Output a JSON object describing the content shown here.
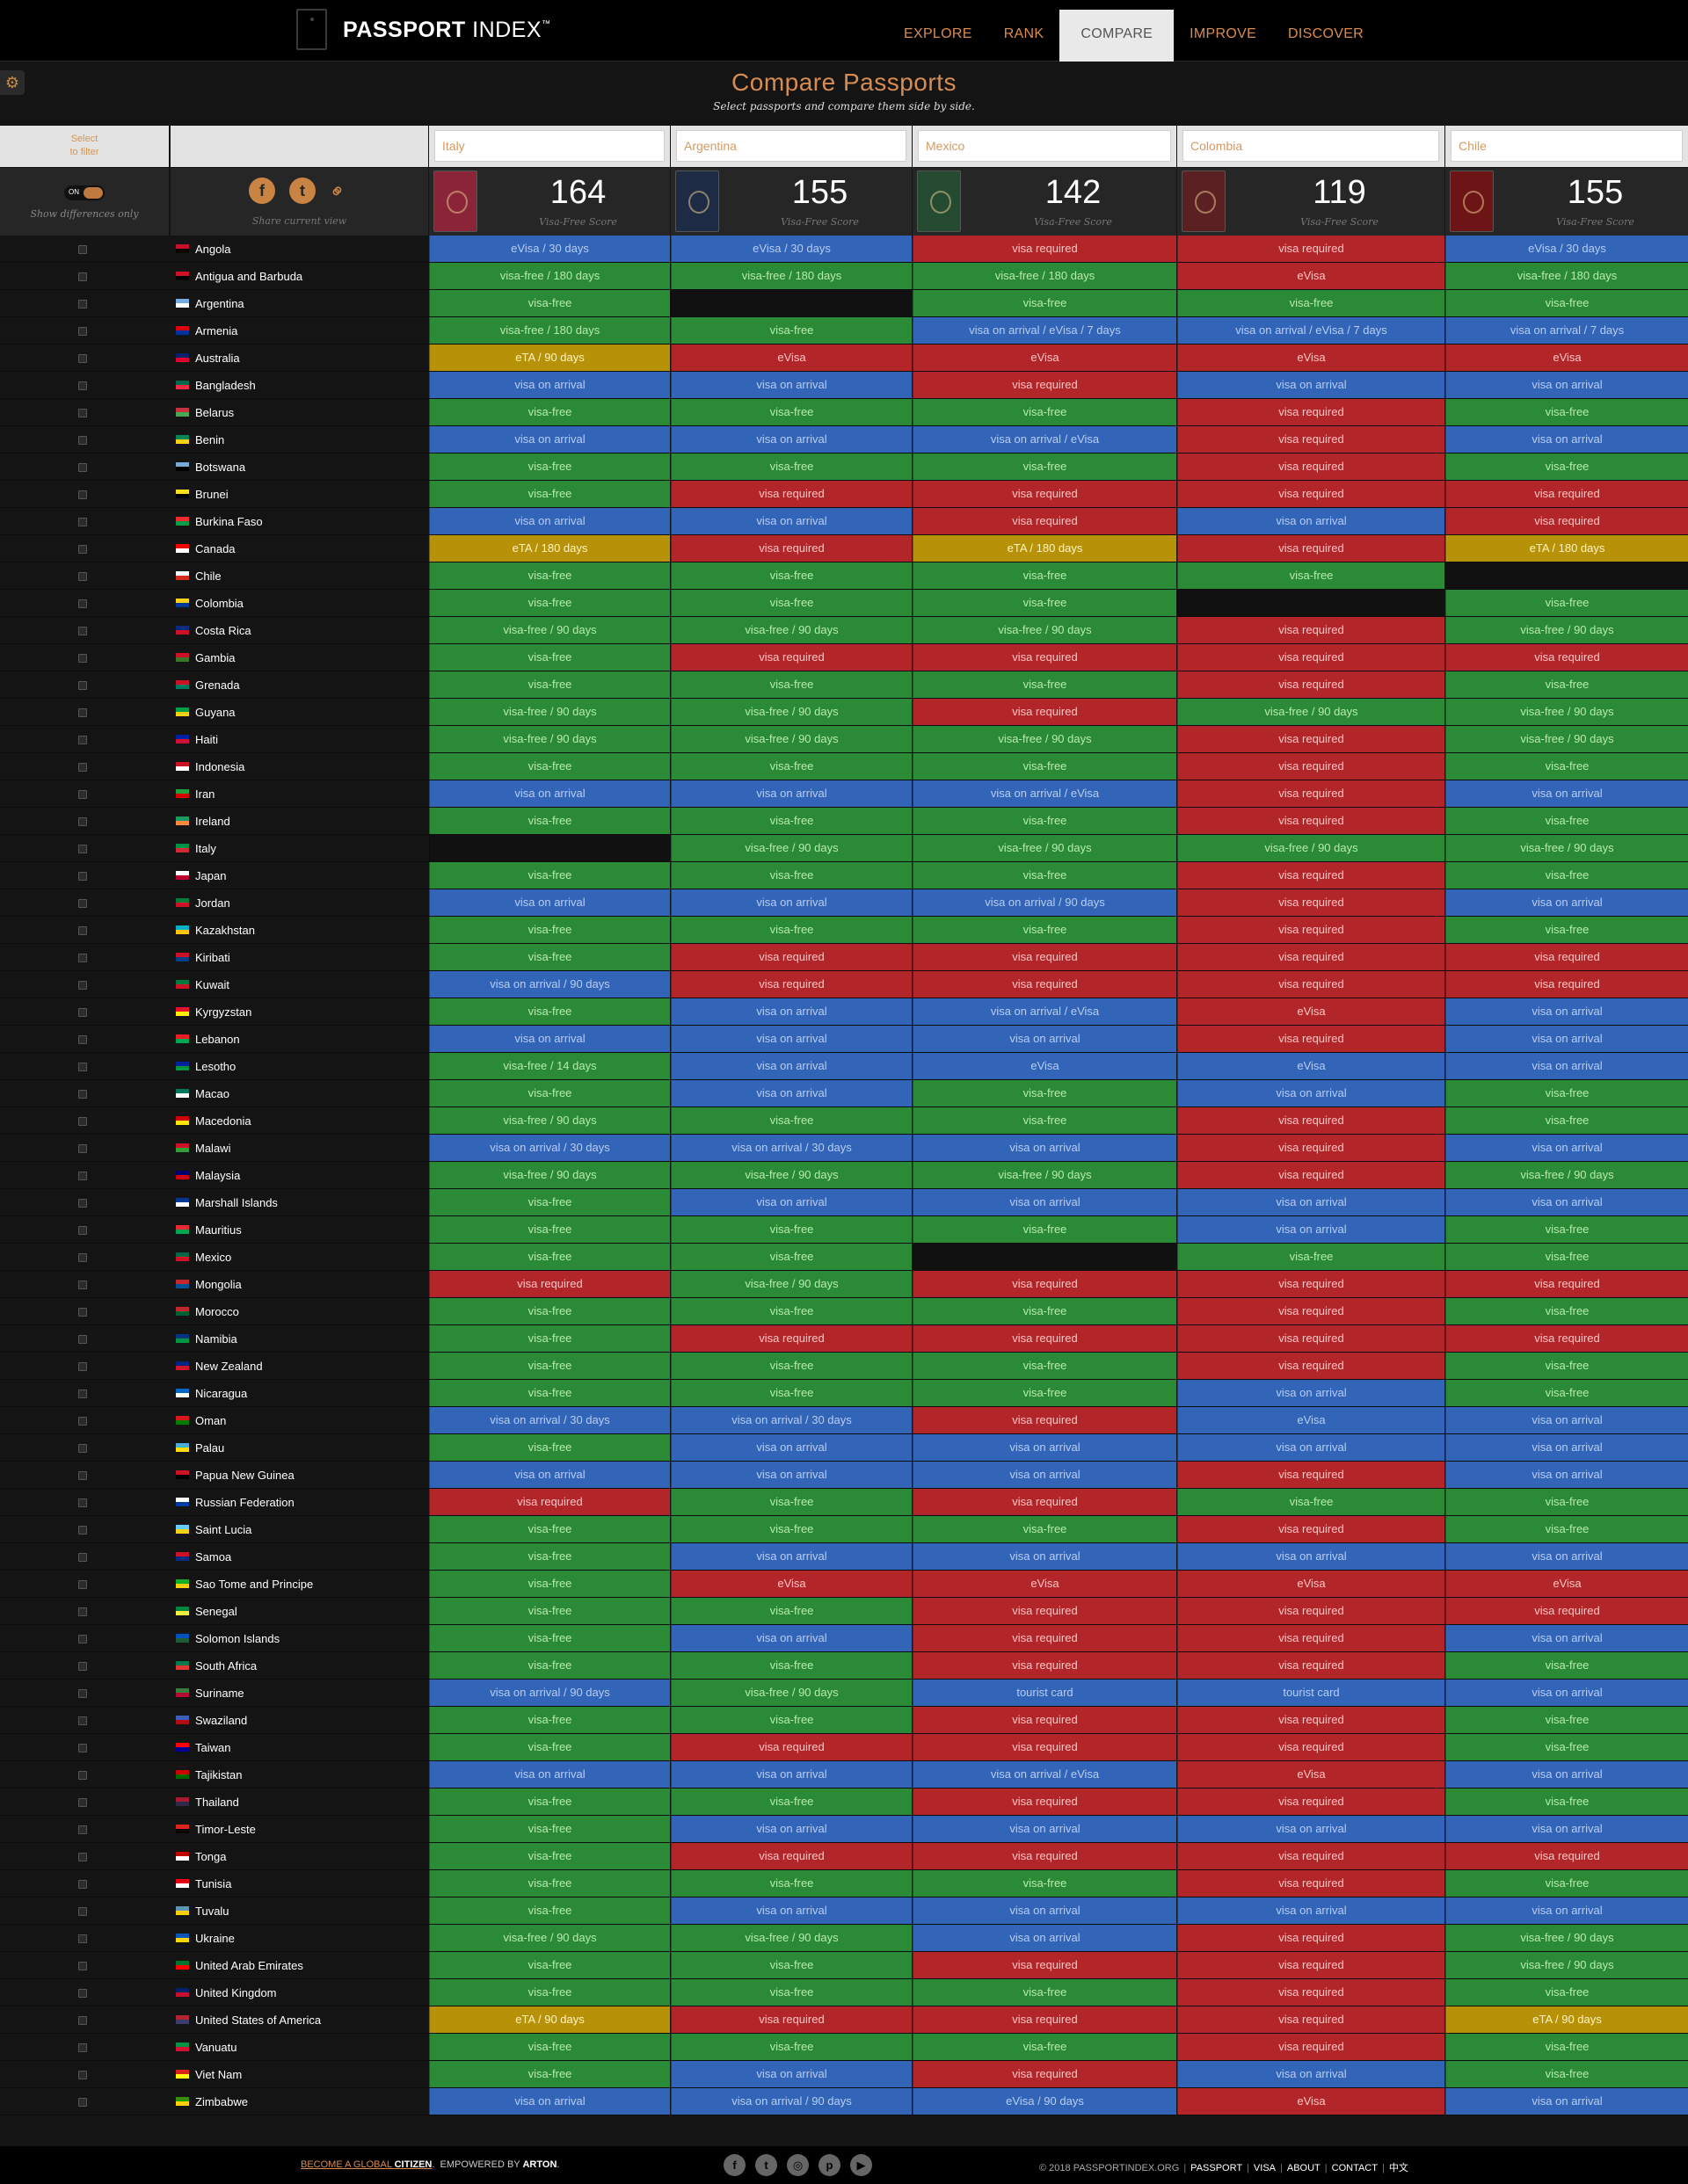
{
  "header": {
    "logo_main": "PASSPORT",
    "logo_sub": "INDEX",
    "logo_tm": "™",
    "nav": [
      "EXPLORE",
      "RANK",
      "COMPARE",
      "IMPROVE",
      "DISCOVER"
    ],
    "active_nav": "COMPARE"
  },
  "page": {
    "title": "Compare Passports",
    "subtitle": "Select passports and compare them side by side.",
    "settings_icon": "gear-icon"
  },
  "controls": {
    "filter_line1": "Select",
    "filter_line2": "to filter",
    "toggle_label": "ON",
    "show_differences_label": "Show differences only",
    "share_label": "Share current view",
    "share_icons": [
      "facebook-icon",
      "twitter-icon",
      "link-icon"
    ]
  },
  "passports": [
    {
      "name": "Italy",
      "score": "164",
      "score_label": "Visa-Free Score",
      "cover_color": "#8a2438"
    },
    {
      "name": "Argentina",
      "score": "155",
      "score_label": "Visa-Free Score",
      "cover_color": "#1d2b45"
    },
    {
      "name": "Mexico",
      "score": "142",
      "score_label": "Visa-Free Score",
      "cover_color": "#244a32"
    },
    {
      "name": "Colombia",
      "score": "119",
      "score_label": "Visa-Free Score",
      "cover_color": "#5a2022"
    },
    {
      "name": "Chile",
      "score": "155",
      "score_label": "Visa-Free Score",
      "cover_color": "#6d1516"
    }
  ],
  "status_colors": {
    "visa required": "#b2262a",
    "visa-free": "#2a8a35",
    "visa on arrival": "#3264b8",
    "eta": "#b79209"
  },
  "countries": [
    {
      "name": "Angola",
      "flag": [
        "#c8102e",
        "#000000"
      ],
      "values": [
        "eVisa / 30 days",
        "eVisa / 30 days",
        "visa required",
        "visa required",
        "eVisa / 30 days"
      ]
    },
    {
      "name": "Antigua and Barbuda",
      "flag": [
        "#ce1126",
        "#000000"
      ],
      "values": [
        "visa-free / 180 days",
        "visa-free / 180 days",
        "visa-free / 180 days",
        "eVisa",
        "visa-free / 180 days"
      ]
    },
    {
      "name": "Argentina",
      "flag": [
        "#74acdf",
        "#ffffff"
      ],
      "values": [
        "visa-free",
        "",
        "visa-free",
        "visa-free",
        "visa-free"
      ]
    },
    {
      "name": "Armenia",
      "flag": [
        "#d90012",
        "#0033a0"
      ],
      "values": [
        "visa-free / 180 days",
        "visa-free",
        "visa on arrival / eVisa / 7 days",
        "visa on arrival / eVisa / 7 days",
        "visa on arrival / 7 days"
      ]
    },
    {
      "name": "Australia",
      "flag": [
        "#012169",
        "#e4002b"
      ],
      "values": [
        "eTA / 90 days",
        "eVisa",
        "eVisa",
        "eVisa",
        "eVisa"
      ]
    },
    {
      "name": "Bangladesh",
      "flag": [
        "#006a4e",
        "#f42a41"
      ],
      "values": [
        "visa on arrival",
        "visa on arrival",
        "visa required",
        "visa on arrival",
        "visa on arrival"
      ]
    },
    {
      "name": "Belarus",
      "flag": [
        "#c8313e",
        "#4aa657"
      ],
      "values": [
        "visa-free",
        "visa-free",
        "visa-free",
        "visa required",
        "visa-free"
      ]
    },
    {
      "name": "Benin",
      "flag": [
        "#008751",
        "#fcd116"
      ],
      "values": [
        "visa on arrival",
        "visa on arrival",
        "visa on arrival / eVisa",
        "visa required",
        "visa on arrival"
      ]
    },
    {
      "name": "Botswana",
      "flag": [
        "#75aadb",
        "#000000"
      ],
      "values": [
        "visa-free",
        "visa-free",
        "visa-free",
        "visa required",
        "visa-free"
      ]
    },
    {
      "name": "Brunei",
      "flag": [
        "#f7e017",
        "#000000"
      ],
      "values": [
        "visa-free",
        "visa required",
        "visa required",
        "visa required",
        "visa required"
      ]
    },
    {
      "name": "Burkina Faso",
      "flag": [
        "#ef2b2d",
        "#009e49"
      ],
      "values": [
        "visa on arrival",
        "visa on arrival",
        "visa required",
        "visa on arrival",
        "visa required"
      ]
    },
    {
      "name": "Canada",
      "flag": [
        "#ff0000",
        "#ffffff"
      ],
      "values": [
        "eTA / 180 days",
        "visa required",
        "eTA / 180 days",
        "visa required",
        "eTA / 180 days"
      ]
    },
    {
      "name": "Chile",
      "flag": [
        "#ffffff",
        "#d52b1e"
      ],
      "values": [
        "visa-free",
        "visa-free",
        "visa-free",
        "visa-free",
        ""
      ]
    },
    {
      "name": "Colombia",
      "flag": [
        "#fcd116",
        "#003893"
      ],
      "values": [
        "visa-free",
        "visa-free",
        "visa-free",
        "",
        "visa-free"
      ]
    },
    {
      "name": "Costa Rica",
      "flag": [
        "#002b7f",
        "#ce1126"
      ],
      "values": [
        "visa-free / 90 days",
        "visa-free / 90 days",
        "visa-free / 90 days",
        "visa required",
        "visa-free / 90 days"
      ]
    },
    {
      "name": "Gambia",
      "flag": [
        "#ce1126",
        "#3a7728"
      ],
      "values": [
        "visa-free",
        "visa required",
        "visa required",
        "visa required",
        "visa required"
      ]
    },
    {
      "name": "Grenada",
      "flag": [
        "#ce1126",
        "#007a5e"
      ],
      "values": [
        "visa-free",
        "visa-free",
        "visa-free",
        "visa required",
        "visa-free"
      ]
    },
    {
      "name": "Guyana",
      "flag": [
        "#009e49",
        "#fcd116"
      ],
      "values": [
        "visa-free / 90 days",
        "visa-free / 90 days",
        "visa required",
        "visa-free / 90 days",
        "visa-free / 90 days"
      ]
    },
    {
      "name": "Haiti",
      "flag": [
        "#00209f",
        "#d21034"
      ],
      "values": [
        "visa-free / 90 days",
        "visa-free / 90 days",
        "visa-free / 90 days",
        "visa required",
        "visa-free / 90 days"
      ]
    },
    {
      "name": "Indonesia",
      "flag": [
        "#ce1126",
        "#ffffff"
      ],
      "values": [
        "visa-free",
        "visa-free",
        "visa-free",
        "visa required",
        "visa-free"
      ]
    },
    {
      "name": "Iran",
      "flag": [
        "#239f40",
        "#da0000"
      ],
      "values": [
        "visa on arrival",
        "visa on arrival",
        "visa on arrival / eVisa",
        "visa required",
        "visa on arrival"
      ]
    },
    {
      "name": "Ireland",
      "flag": [
        "#169b62",
        "#ff883e"
      ],
      "values": [
        "visa-free",
        "visa-free",
        "visa-free",
        "visa required",
        "visa-free"
      ]
    },
    {
      "name": "Italy",
      "flag": [
        "#009246",
        "#ce2b37"
      ],
      "values": [
        "",
        "visa-free / 90 days",
        "visa-free / 90 days",
        "visa-free / 90 days",
        "visa-free / 90 days"
      ]
    },
    {
      "name": "Japan",
      "flag": [
        "#ffffff",
        "#bc002d"
      ],
      "values": [
        "visa-free",
        "visa-free",
        "visa-free",
        "visa required",
        "visa-free"
      ]
    },
    {
      "name": "Jordan",
      "flag": [
        "#007a3d",
        "#ce1126"
      ],
      "values": [
        "visa on arrival",
        "visa on arrival",
        "visa on arrival / 90 days",
        "visa required",
        "visa on arrival"
      ]
    },
    {
      "name": "Kazakhstan",
      "flag": [
        "#00afca",
        "#fec50c"
      ],
      "values": [
        "visa-free",
        "visa-free",
        "visa-free",
        "visa required",
        "visa-free"
      ]
    },
    {
      "name": "Kiribati",
      "flag": [
        "#ce1126",
        "#003f87"
      ],
      "values": [
        "visa-free",
        "visa required",
        "visa required",
        "visa required",
        "visa required"
      ]
    },
    {
      "name": "Kuwait",
      "flag": [
        "#007a3d",
        "#ce1126"
      ],
      "values": [
        "visa on arrival / 90 days",
        "visa required",
        "visa required",
        "visa required",
        "visa required"
      ]
    },
    {
      "name": "Kyrgyzstan",
      "flag": [
        "#e8112d",
        "#ffef00"
      ],
      "values": [
        "visa-free",
        "visa on arrival",
        "visa on arrival / eVisa",
        "eVisa",
        "visa on arrival"
      ]
    },
    {
      "name": "Lebanon",
      "flag": [
        "#ed1c24",
        "#00a651"
      ],
      "values": [
        "visa on arrival",
        "visa on arrival",
        "visa on arrival",
        "visa required",
        "visa on arrival"
      ]
    },
    {
      "name": "Lesotho",
      "flag": [
        "#00209f",
        "#009543"
      ],
      "values": [
        "visa-free / 14 days",
        "visa on arrival",
        "eVisa",
        "eVisa",
        "visa on arrival"
      ]
    },
    {
      "name": "Macao",
      "flag": [
        "#00785e",
        "#ffffff"
      ],
      "values": [
        "visa-free",
        "visa on arrival",
        "visa-free",
        "visa on arrival",
        "visa-free"
      ]
    },
    {
      "name": "Macedonia",
      "flag": [
        "#d20000",
        "#ffe600"
      ],
      "values": [
        "visa-free / 90 days",
        "visa-free",
        "visa-free",
        "visa required",
        "visa-free"
      ]
    },
    {
      "name": "Malawi",
      "flag": [
        "#ce1126",
        "#339e35"
      ],
      "values": [
        "visa on arrival / 30 days",
        "visa on arrival / 30 days",
        "visa on arrival",
        "visa required",
        "visa on arrival"
      ]
    },
    {
      "name": "Malaysia",
      "flag": [
        "#010066",
        "#cc0001"
      ],
      "values": [
        "visa-free / 90 days",
        "visa-free / 90 days",
        "visa-free / 90 days",
        "visa required",
        "visa-free / 90 days"
      ]
    },
    {
      "name": "Marshall Islands",
      "flag": [
        "#003893",
        "#ffffff"
      ],
      "values": [
        "visa-free",
        "visa on arrival",
        "visa on arrival",
        "visa on arrival",
        "visa on arrival"
      ]
    },
    {
      "name": "Mauritius",
      "flag": [
        "#ea2839",
        "#00a551"
      ],
      "values": [
        "visa-free",
        "visa-free",
        "visa-free",
        "visa on arrival",
        "visa-free"
      ]
    },
    {
      "name": "Mexico",
      "flag": [
        "#006847",
        "#ce1126"
      ],
      "values": [
        "visa-free",
        "visa-free",
        "",
        "visa-free",
        "visa-free"
      ]
    },
    {
      "name": "Mongolia",
      "flag": [
        "#c4272f",
        "#015197"
      ],
      "values": [
        "visa required",
        "visa-free / 90 days",
        "visa required",
        "visa required",
        "visa required"
      ]
    },
    {
      "name": "Morocco",
      "flag": [
        "#c1272d",
        "#006233"
      ],
      "values": [
        "visa-free",
        "visa-free",
        "visa-free",
        "visa required",
        "visa-free"
      ]
    },
    {
      "name": "Namibia",
      "flag": [
        "#003580",
        "#009543"
      ],
      "values": [
        "visa-free",
        "visa required",
        "visa required",
        "visa required",
        "visa required"
      ]
    },
    {
      "name": "New Zealand",
      "flag": [
        "#00247d",
        "#cc142b"
      ],
      "values": [
        "visa-free",
        "visa-free",
        "visa-free",
        "visa required",
        "visa-free"
      ]
    },
    {
      "name": "Nicaragua",
      "flag": [
        "#0067c6",
        "#ffffff"
      ],
      "values": [
        "visa-free",
        "visa-free",
        "visa-free",
        "visa on arrival",
        "visa-free"
      ]
    },
    {
      "name": "Oman",
      "flag": [
        "#db161b",
        "#008000"
      ],
      "values": [
        "visa on arrival / 30 days",
        "visa on arrival / 30 days",
        "visa required",
        "eVisa",
        "visa on arrival"
      ]
    },
    {
      "name": "Palau",
      "flag": [
        "#4aadd6",
        "#ffde00"
      ],
      "values": [
        "visa-free",
        "visa on arrival",
        "visa on arrival",
        "visa on arrival",
        "visa on arrival"
      ]
    },
    {
      "name": "Papua New Guinea",
      "flag": [
        "#ce1126",
        "#000000"
      ],
      "values": [
        "visa on arrival",
        "visa on arrival",
        "visa on arrival",
        "visa required",
        "visa on arrival"
      ]
    },
    {
      "name": "Russian Federation",
      "flag": [
        "#ffffff",
        "#0039a6"
      ],
      "values": [
        "visa required",
        "visa-free",
        "visa required",
        "visa-free",
        "visa-free"
      ]
    },
    {
      "name": "Saint Lucia",
      "flag": [
        "#66ccff",
        "#fcd116"
      ],
      "values": [
        "visa-free",
        "visa-free",
        "visa-free",
        "visa required",
        "visa-free"
      ]
    },
    {
      "name": "Samoa",
      "flag": [
        "#ce1126",
        "#002b7f"
      ],
      "values": [
        "visa-free",
        "visa on arrival",
        "visa on arrival",
        "visa on arrival",
        "visa on arrival"
      ]
    },
    {
      "name": "Sao Tome and Principe",
      "flag": [
        "#12ad2b",
        "#ffce00"
      ],
      "values": [
        "visa-free",
        "eVisa",
        "eVisa",
        "eVisa",
        "eVisa"
      ]
    },
    {
      "name": "Senegal",
      "flag": [
        "#00853f",
        "#fdef42"
      ],
      "values": [
        "visa-free",
        "visa-free",
        "visa required",
        "visa required",
        "visa required"
      ]
    },
    {
      "name": "Solomon Islands",
      "flag": [
        "#0051ba",
        "#215b33"
      ],
      "values": [
        "visa-free",
        "visa on arrival",
        "visa required",
        "visa required",
        "visa on arrival"
      ]
    },
    {
      "name": "South Africa",
      "flag": [
        "#007a4d",
        "#de3831"
      ],
      "values": [
        "visa-free",
        "visa-free",
        "visa required",
        "visa required",
        "visa-free"
      ]
    },
    {
      "name": "Suriname",
      "flag": [
        "#377e3f",
        "#b40a2d"
      ],
      "values": [
        "visa on arrival / 90 days",
        "visa-free / 90 days",
        "tourist card",
        "tourist card",
        "visa on arrival"
      ]
    },
    {
      "name": "Swaziland",
      "flag": [
        "#3e5eb9",
        "#b10c0c"
      ],
      "values": [
        "visa-free",
        "visa-free",
        "visa required",
        "visa required",
        "visa-free"
      ]
    },
    {
      "name": "Taiwan",
      "flag": [
        "#fe0000",
        "#000095"
      ],
      "values": [
        "visa-free",
        "visa required",
        "visa required",
        "visa required",
        "visa-free"
      ]
    },
    {
      "name": "Tajikistan",
      "flag": [
        "#cc0000",
        "#006600"
      ],
      "values": [
        "visa on arrival",
        "visa on arrival",
        "visa on arrival / eVisa",
        "eVisa",
        "visa on arrival"
      ]
    },
    {
      "name": "Thailand",
      "flag": [
        "#a51931",
        "#2d2a4a"
      ],
      "values": [
        "visa-free",
        "visa-free",
        "visa required",
        "visa required",
        "visa-free"
      ]
    },
    {
      "name": "Timor-Leste",
      "flag": [
        "#dc241f",
        "#000000"
      ],
      "values": [
        "visa-free",
        "visa on arrival",
        "visa on arrival",
        "visa on arrival",
        "visa on arrival"
      ]
    },
    {
      "name": "Tonga",
      "flag": [
        "#c10000",
        "#ffffff"
      ],
      "values": [
        "visa-free",
        "visa required",
        "visa required",
        "visa required",
        "visa required"
      ]
    },
    {
      "name": "Tunisia",
      "flag": [
        "#e70013",
        "#ffffff"
      ],
      "values": [
        "visa-free",
        "visa-free",
        "visa-free",
        "visa required",
        "visa-free"
      ]
    },
    {
      "name": "Tuvalu",
      "flag": [
        "#5b97b1",
        "#ffce00"
      ],
      "values": [
        "visa-free",
        "visa on arrival",
        "visa on arrival",
        "visa on arrival",
        "visa on arrival"
      ]
    },
    {
      "name": "Ukraine",
      "flag": [
        "#0057b7",
        "#ffd700"
      ],
      "values": [
        "visa-free / 90 days",
        "visa-free / 90 days",
        "visa on arrival",
        "visa required",
        "visa-free / 90 days"
      ]
    },
    {
      "name": "United Arab Emirates",
      "flag": [
        "#00732f",
        "#ff0000"
      ],
      "values": [
        "visa-free",
        "visa-free",
        "visa required",
        "visa required",
        "visa-free / 90 days"
      ]
    },
    {
      "name": "United Kingdom",
      "flag": [
        "#012169",
        "#c8102e"
      ],
      "values": [
        "visa-free",
        "visa-free",
        "visa-free",
        "visa required",
        "visa-free"
      ]
    },
    {
      "name": "United States of America",
      "flag": [
        "#b22234",
        "#3c3b6e"
      ],
      "values": [
        "eTA / 90 days",
        "visa required",
        "visa required",
        "visa required",
        "eTA / 90 days"
      ]
    },
    {
      "name": "Vanuatu",
      "flag": [
        "#009543",
        "#d21034"
      ],
      "values": [
        "visa-free",
        "visa-free",
        "visa-free",
        "visa required",
        "visa-free"
      ]
    },
    {
      "name": "Viet Nam",
      "flag": [
        "#da251d",
        "#ffff00"
      ],
      "values": [
        "visa-free",
        "visa on arrival",
        "visa required",
        "visa on arrival",
        "visa-free"
      ]
    },
    {
      "name": "Zimbabwe",
      "flag": [
        "#319208",
        "#ffd200"
      ],
      "values": [
        "visa on arrival",
        "visa on arrival / 90 days",
        "eVisa / 90 days",
        "eVisa",
        "visa on arrival"
      ]
    }
  ],
  "footer": {
    "cta_part1": "BECOME A GLOBAL",
    "cta_part2": "CITIZEN",
    "powered": "EMPOWERED BY",
    "powered_brand": "ARTON",
    "social_icons": [
      "facebook-icon",
      "twitter-icon",
      "instagram-icon",
      "pinterest-icon",
      "youtube-icon"
    ],
    "copyright": "© 2018 PASSPORTINDEX.ORG",
    "links": [
      "PASSPORT",
      "VISA",
      "ABOUT",
      "CONTACT",
      "中文"
    ]
  }
}
